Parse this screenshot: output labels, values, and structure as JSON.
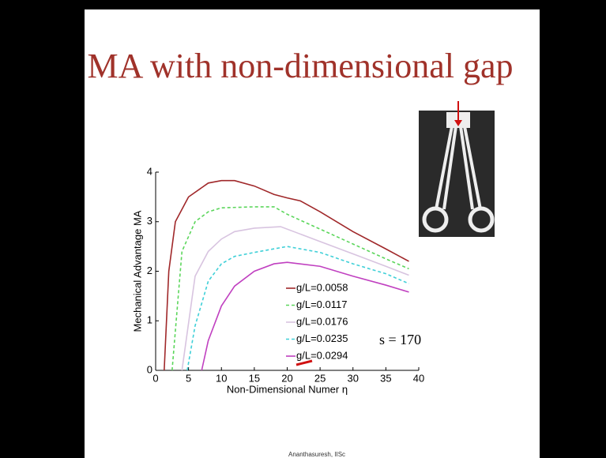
{
  "chart_data": {
    "type": "line",
    "title": "MA with non-dimensional gap",
    "x_label": "Non-Dimensional Numer η",
    "y_label": "Mechanical Advantage MA",
    "annotation": "s = 170",
    "footer": "Ananthasuresh, IISc",
    "xlim": [
      0,
      40
    ],
    "ylim": [
      0,
      4
    ],
    "xticks": [
      0,
      5,
      10,
      15,
      20,
      25,
      30,
      35,
      40
    ],
    "yticks": [
      0,
      1,
      2,
      3,
      4
    ],
    "series": [
      {
        "name": "g/L=0.0058",
        "color": "#a0282a",
        "dash": false,
        "x": [
          1.3,
          2,
          3,
          5,
          8,
          10,
          12,
          15,
          18,
          20,
          22,
          25,
          30,
          35,
          38.5
        ],
        "values": [
          0,
          2.0,
          3.0,
          3.5,
          3.78,
          3.83,
          3.83,
          3.72,
          3.55,
          3.48,
          3.42,
          3.2,
          2.8,
          2.45,
          2.2
        ]
      },
      {
        "name": "g/L=0.0117",
        "color": "#5cd65c",
        "dash": true,
        "x": [
          2.5,
          4,
          6,
          8,
          10,
          15,
          18,
          20,
          25,
          30,
          35,
          38.5
        ],
        "values": [
          0,
          2.4,
          3.0,
          3.2,
          3.28,
          3.3,
          3.3,
          3.15,
          2.85,
          2.55,
          2.25,
          2.05
        ]
      },
      {
        "name": "g/L=0.0176",
        "color": "#d8c4e0",
        "dash": false,
        "x": [
          4,
          6,
          8,
          10,
          12,
          15,
          19,
          22,
          25,
          30,
          35,
          38.5
        ],
        "values": [
          0,
          1.9,
          2.4,
          2.65,
          2.8,
          2.87,
          2.9,
          2.75,
          2.6,
          2.35,
          2.1,
          1.92
        ]
      },
      {
        "name": "g/L=0.0235",
        "color": "#40d0d8",
        "dash": true,
        "x": [
          4.8,
          6,
          8,
          10,
          12,
          15,
          20,
          25,
          30,
          35,
          38.5
        ],
        "values": [
          0,
          0.9,
          1.8,
          2.15,
          2.3,
          2.38,
          2.5,
          2.38,
          2.15,
          1.95,
          1.75
        ]
      },
      {
        "name": "g/L=0.0294",
        "color": "#c040c0",
        "dash": false,
        "x": [
          7,
          8,
          10,
          12,
          15,
          18,
          20,
          25,
          30,
          35,
          38.5
        ],
        "values": [
          0,
          0.6,
          1.3,
          1.7,
          2.0,
          2.15,
          2.18,
          2.1,
          1.9,
          1.72,
          1.58
        ]
      }
    ]
  }
}
